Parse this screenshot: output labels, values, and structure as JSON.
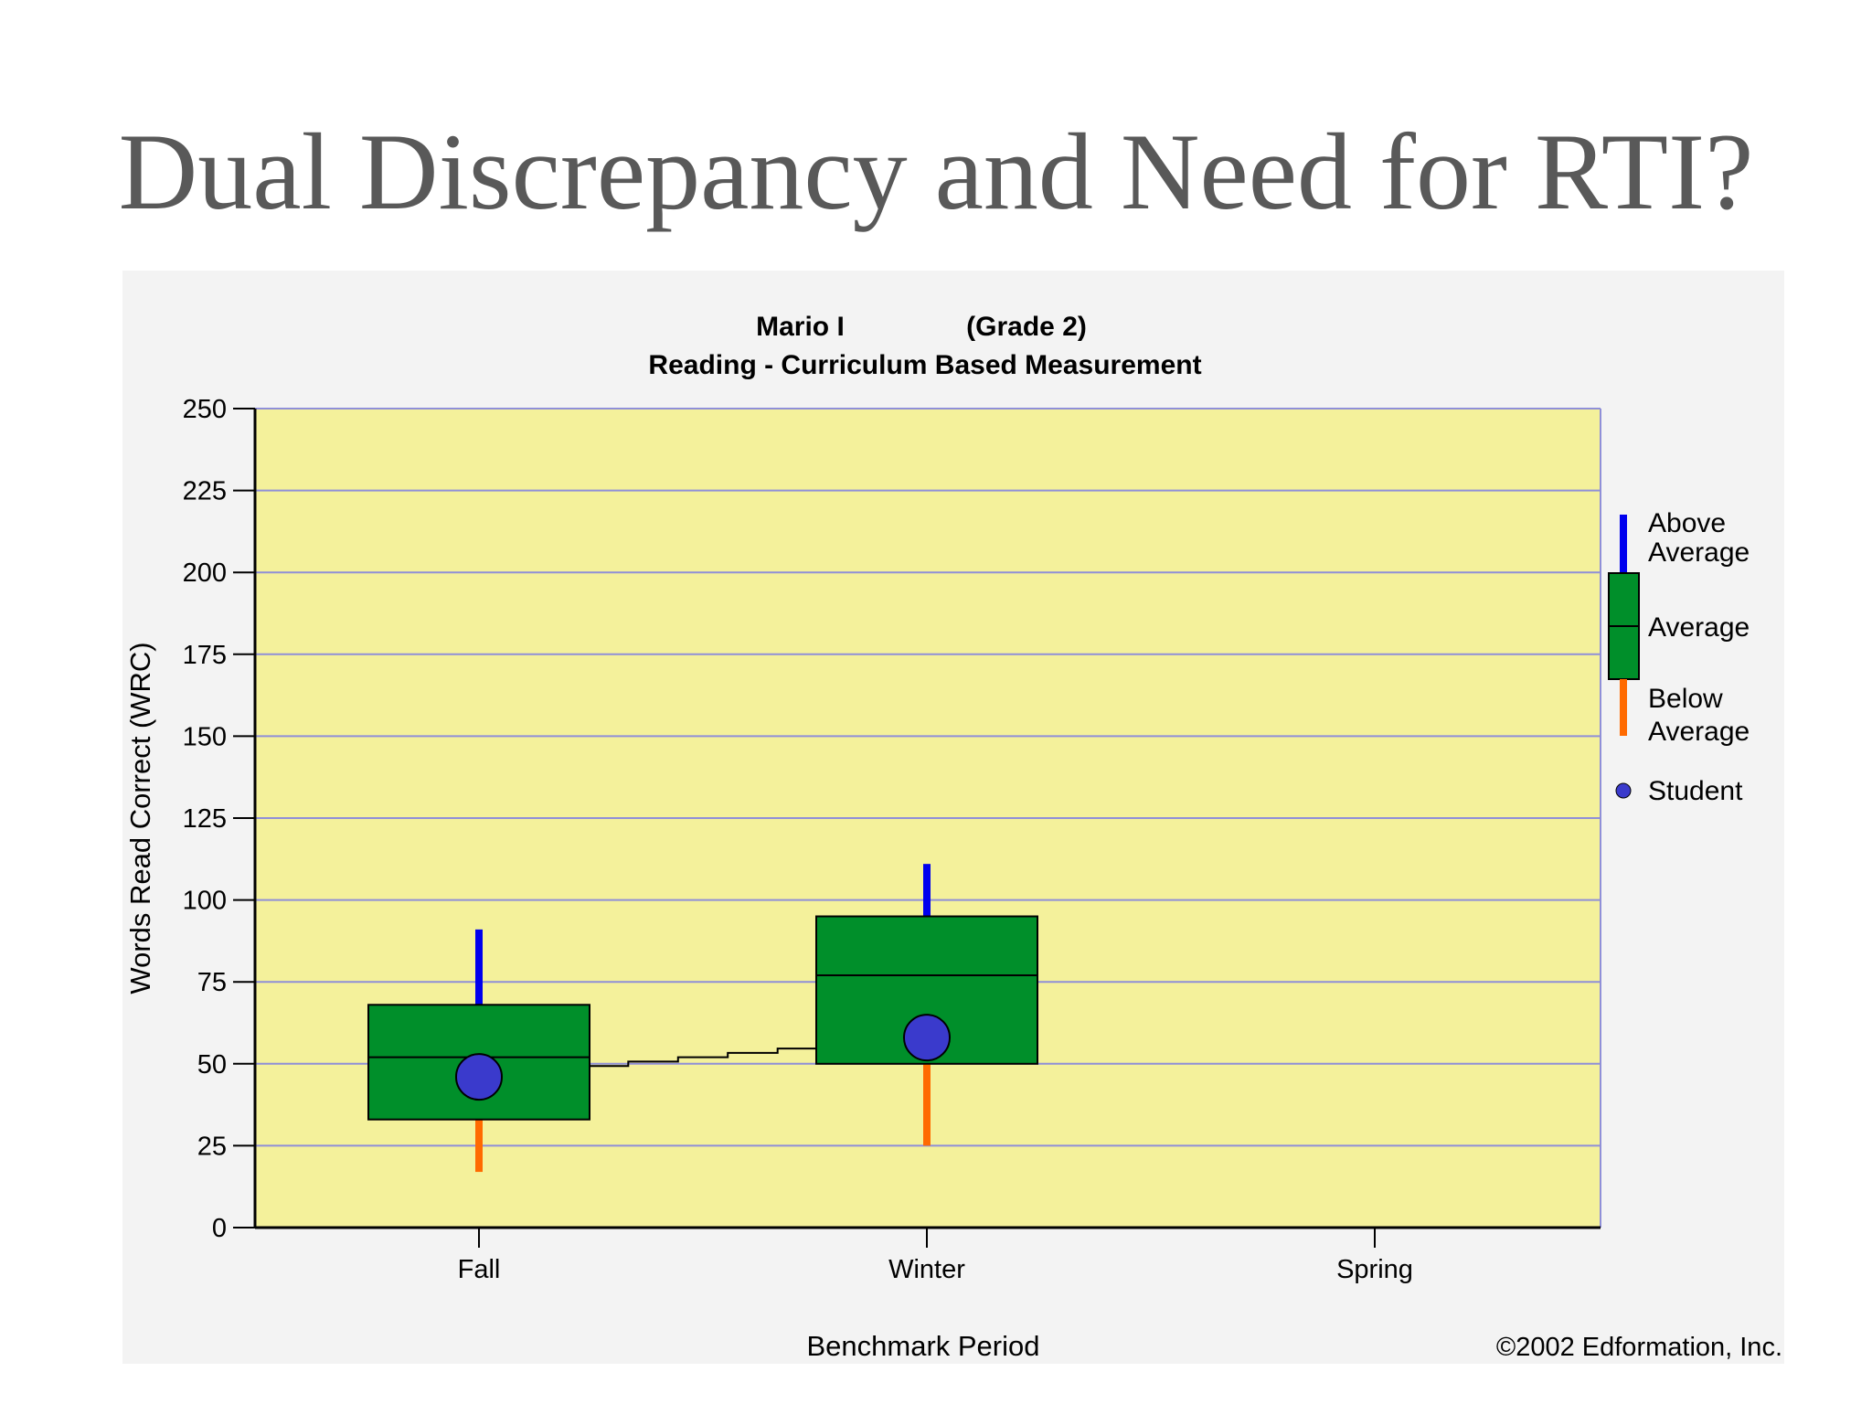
{
  "slide": {
    "title": "Dual Discrepancy and Need for RTI?"
  },
  "colors": {
    "panel_bg": "#f3f3f3",
    "plot_bg": "#f4f19b",
    "gridline": "#8f8fd8",
    "box_fill": "#008f2a",
    "above_whisker": "#0000ee",
    "below_whisker": "#ff6a00",
    "student_marker": "#3a3acc"
  },
  "chart_data": {
    "type": "box",
    "title_lines": [
      "Mario I                (Grade 2)",
      "Reading - Curriculum Based Measurement"
    ],
    "xlabel": "Benchmark Period",
    "ylabel": "Words Read Correct (WRC)",
    "ylim": [
      0,
      250
    ],
    "yticks": [
      0,
      25,
      50,
      75,
      100,
      125,
      150,
      175,
      200,
      225,
      250
    ],
    "grid": true,
    "categories": [
      "Fall",
      "Winter",
      "Spring"
    ],
    "boxes": [
      {
        "period": "Fall",
        "whisker_low": 17,
        "q1": 33,
        "median": 52,
        "q3": 68,
        "whisker_high": 91
      },
      {
        "period": "Winter",
        "whisker_low": 25,
        "q1": 50,
        "median": 77,
        "q3": 95,
        "whisker_high": 111
      }
    ],
    "student": [
      {
        "period": "Fall",
        "value": 46
      },
      {
        "period": "Winter",
        "value": 58
      }
    ],
    "legend": {
      "position": "right",
      "items": [
        "Above Average",
        "Average",
        "Below Average",
        "Student"
      ]
    },
    "copyright": "©2002 Edformation, Inc."
  }
}
